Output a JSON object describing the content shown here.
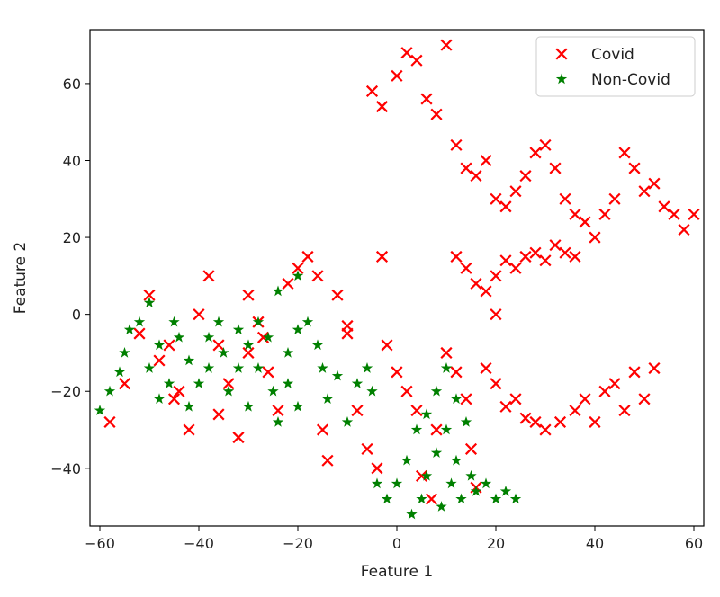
{
  "chart_data": {
    "type": "scatter",
    "title": "",
    "xlabel": "Feature 1",
    "ylabel": "Feature 2",
    "xlim": [
      -62,
      62
    ],
    "ylim": [
      -55,
      74
    ],
    "xticks": [
      -60,
      -40,
      -20,
      0,
      20,
      40,
      60
    ],
    "yticks": [
      -40,
      -20,
      0,
      20,
      40,
      60
    ],
    "grid": false,
    "legend_position": "top-right",
    "series": [
      {
        "name": "Covid",
        "marker": "x",
        "color": "#ff0000",
        "points": [
          [
            -58,
            -28
          ],
          [
            -55,
            -18
          ],
          [
            -52,
            -5
          ],
          [
            -50,
            5
          ],
          [
            -48,
            -12
          ],
          [
            -45,
            -22
          ],
          [
            -42,
            -30
          ],
          [
            -40,
            0
          ],
          [
            -38,
            10
          ],
          [
            -36,
            -8
          ],
          [
            -34,
            -18
          ],
          [
            -32,
            -32
          ],
          [
            -30,
            5
          ],
          [
            -28,
            -2
          ],
          [
            -26,
            -15
          ],
          [
            -24,
            -25
          ],
          [
            -22,
            8
          ],
          [
            -20,
            12
          ],
          [
            -18,
            15
          ],
          [
            -16,
            10
          ],
          [
            -15,
            -30
          ],
          [
            -14,
            -38
          ],
          [
            -12,
            5
          ],
          [
            -10,
            -3
          ],
          [
            -8,
            -25
          ],
          [
            -6,
            -35
          ],
          [
            -4,
            -40
          ],
          [
            -3,
            15
          ],
          [
            -2,
            -8
          ],
          [
            0,
            -15
          ],
          [
            2,
            -20
          ],
          [
            4,
            -25
          ],
          [
            5,
            -42
          ],
          [
            7,
            -48
          ],
          [
            8,
            -30
          ],
          [
            10,
            -10
          ],
          [
            12,
            -15
          ],
          [
            14,
            -22
          ],
          [
            15,
            -35
          ],
          [
            16,
            -45
          ],
          [
            18,
            -14
          ],
          [
            20,
            -18
          ],
          [
            22,
            -24
          ],
          [
            24,
            -22
          ],
          [
            26,
            -27
          ],
          [
            28,
            -28
          ],
          [
            30,
            -30
          ],
          [
            33,
            -28
          ],
          [
            36,
            -25
          ],
          [
            38,
            -22
          ],
          [
            40,
            -28
          ],
          [
            42,
            -20
          ],
          [
            44,
            -18
          ],
          [
            46,
            -25
          ],
          [
            48,
            -15
          ],
          [
            50,
            -22
          ],
          [
            52,
            -14
          ],
          [
            -5,
            58
          ],
          [
            -3,
            54
          ],
          [
            0,
            62
          ],
          [
            2,
            68
          ],
          [
            4,
            66
          ],
          [
            6,
            56
          ],
          [
            8,
            52
          ],
          [
            10,
            70
          ],
          [
            12,
            44
          ],
          [
            14,
            38
          ],
          [
            16,
            36
          ],
          [
            18,
            40
          ],
          [
            20,
            30
          ],
          [
            22,
            28
          ],
          [
            24,
            32
          ],
          [
            26,
            36
          ],
          [
            28,
            42
          ],
          [
            30,
            44
          ],
          [
            32,
            38
          ],
          [
            34,
            30
          ],
          [
            36,
            26
          ],
          [
            38,
            24
          ],
          [
            40,
            20
          ],
          [
            42,
            26
          ],
          [
            44,
            30
          ],
          [
            46,
            42
          ],
          [
            48,
            38
          ],
          [
            50,
            32
          ],
          [
            52,
            34
          ],
          [
            54,
            28
          ],
          [
            56,
            26
          ],
          [
            58,
            22
          ],
          [
            60,
            26
          ],
          [
            12,
            15
          ],
          [
            14,
            12
          ],
          [
            16,
            8
          ],
          [
            18,
            6
          ],
          [
            20,
            10
          ],
          [
            22,
            14
          ],
          [
            24,
            12
          ],
          [
            26,
            15
          ],
          [
            28,
            16
          ],
          [
            30,
            14
          ],
          [
            32,
            18
          ],
          [
            34,
            16
          ],
          [
            36,
            15
          ],
          [
            20,
            0
          ],
          [
            -30,
            -10
          ],
          [
            -44,
            -20
          ],
          [
            -46,
            -8
          ],
          [
            -36,
            -26
          ],
          [
            -27,
            -6
          ],
          [
            -10,
            -5
          ]
        ]
      },
      {
        "name": "Non-Covid",
        "marker": "*",
        "color": "#008000",
        "points": [
          [
            -60,
            -25
          ],
          [
            -58,
            -20
          ],
          [
            -56,
            -15
          ],
          [
            -55,
            -10
          ],
          [
            -54,
            -4
          ],
          [
            -52,
            -2
          ],
          [
            -50,
            3
          ],
          [
            -50,
            -14
          ],
          [
            -48,
            -8
          ],
          [
            -48,
            -22
          ],
          [
            -46,
            -18
          ],
          [
            -45,
            -2
          ],
          [
            -44,
            -6
          ],
          [
            -42,
            -12
          ],
          [
            -42,
            -24
          ],
          [
            -40,
            -18
          ],
          [
            -38,
            -6
          ],
          [
            -38,
            -14
          ],
          [
            -36,
            -2
          ],
          [
            -35,
            -10
          ],
          [
            -34,
            -20
          ],
          [
            -32,
            -4
          ],
          [
            -32,
            -14
          ],
          [
            -30,
            -8
          ],
          [
            -30,
            -24
          ],
          [
            -28,
            -2
          ],
          [
            -28,
            -14
          ],
          [
            -26,
            -6
          ],
          [
            -25,
            -20
          ],
          [
            -24,
            -28
          ],
          [
            -22,
            -10
          ],
          [
            -22,
            -18
          ],
          [
            -20,
            -4
          ],
          [
            -20,
            -24
          ],
          [
            -18,
            -2
          ],
          [
            -16,
            -8
          ],
          [
            -15,
            -14
          ],
          [
            -14,
            -22
          ],
          [
            -12,
            -16
          ],
          [
            -10,
            -28
          ],
          [
            -8,
            -18
          ],
          [
            -6,
            -14
          ],
          [
            -5,
            -20
          ],
          [
            -4,
            -44
          ],
          [
            -2,
            -48
          ],
          [
            0,
            -44
          ],
          [
            2,
            -38
          ],
          [
            3,
            -52
          ],
          [
            4,
            -30
          ],
          [
            5,
            -48
          ],
          [
            6,
            -26
          ],
          [
            6,
            -42
          ],
          [
            8,
            -20
          ],
          [
            8,
            -36
          ],
          [
            9,
            -50
          ],
          [
            10,
            -14
          ],
          [
            10,
            -30
          ],
          [
            11,
            -44
          ],
          [
            12,
            -22
          ],
          [
            12,
            -38
          ],
          [
            13,
            -48
          ],
          [
            14,
            -28
          ],
          [
            15,
            -42
          ],
          [
            16,
            -46
          ],
          [
            18,
            -44
          ],
          [
            20,
            -48
          ],
          [
            22,
            -46
          ],
          [
            24,
            -48
          ],
          [
            -20,
            10
          ],
          [
            -24,
            6
          ]
        ]
      }
    ]
  }
}
